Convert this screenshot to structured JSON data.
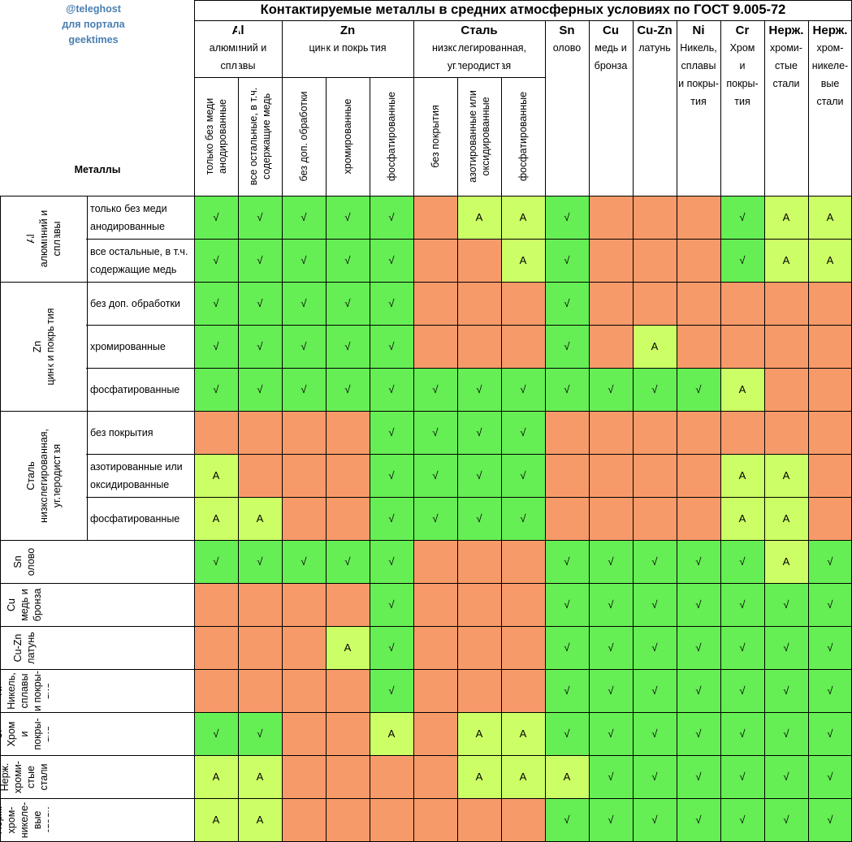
{
  "watermark": [
    "@teleghost",
    "для портала",
    "geektimes"
  ],
  "title": "Контактируемые металлы в средних атмосферных условиях по ГОСТ 9.005-72",
  "corner_label": "Металлы",
  "colors": {
    "compatible": "#66ee55",
    "acceptable": "#ccff66",
    "incompatible": "#f79a6a"
  },
  "symbols": {
    "ok": "√",
    "acceptable": "А"
  },
  "col_groups": [
    {
      "symbol": "Al",
      "name": [
        "алюминий и",
        "сплавы"
      ]
    },
    {
      "symbol": "Zn",
      "name": [
        "цинк и покрытия"
      ]
    },
    {
      "symbol": "Сталь",
      "name": [
        "низколегированная,",
        "углеродистая"
      ]
    },
    {
      "symbol": "Sn",
      "name": [
        "олово"
      ]
    },
    {
      "symbol": "Cu",
      "name": [
        "медь и",
        "бронза"
      ]
    },
    {
      "symbol": "Cu-Zn",
      "name": [
        "латунь"
      ]
    },
    {
      "symbol": "Ni",
      "name": [
        "Никель,",
        "сплавы",
        "и покры-",
        "тия"
      ]
    },
    {
      "symbol": "Cr",
      "name": [
        "Хром",
        "и",
        "покры-",
        "тия"
      ]
    },
    {
      "symbol": "Нерж.",
      "name": [
        "хроми-",
        "стые",
        "стали"
      ]
    },
    {
      "symbol": "Нерж.",
      "name": [
        "хром-",
        "никеле-",
        "вые",
        "стали"
      ]
    }
  ],
  "col_subs": [
    [
      "только без меди",
      "анодированные"
    ],
    [
      "все остальные, в т.ч.",
      "содержащие медь"
    ],
    [
      "без доп. обработки"
    ],
    [
      "хромированные"
    ],
    [
      "фосфатированные"
    ],
    [
      "без покрытия"
    ],
    [
      "азотированные или",
      "оксидированные"
    ],
    [
      "фосфатированные"
    ]
  ],
  "row_groups": [
    {
      "lines": [
        "Al",
        "алюминий и",
        "сплавы"
      ]
    },
    {
      "lines": [
        "Zn",
        "цинк и покрытия"
      ]
    },
    {
      "lines": [
        "Сталь",
        "низколегированная,",
        "углеродистая"
      ]
    },
    {
      "lines": [
        "Sn",
        "олово"
      ]
    },
    {
      "lines": [
        "Cu",
        "медь и",
        "бронза"
      ]
    },
    {
      "lines": [
        "Cu-Zn",
        "латунь"
      ]
    },
    {
      "lines": [
        "Ni",
        "Никель,",
        "сплавы",
        "и покры-",
        "тия"
      ]
    },
    {
      "lines": [
        "Cr",
        "Хром",
        "и",
        "покры-",
        "тия"
      ]
    },
    {
      "lines": [
        "Нерж.",
        "хроми-",
        "стые",
        "стали"
      ]
    },
    {
      "lines": [
        "Нерж.",
        "хром-",
        "никеле-",
        "вые",
        "стали"
      ]
    }
  ],
  "row_subs": [
    [
      "только без меди",
      "анодированные"
    ],
    [
      "все остальные, в т.ч.",
      "содержащие медь"
    ],
    [
      " без доп. обработки"
    ],
    [
      "хромированные"
    ],
    [
      "фосфатированные"
    ],
    [
      "без покрытия"
    ],
    [
      "азотированные или",
      "оксидированные"
    ],
    [
      "фосфатированные"
    ]
  ],
  "matrix": [
    [
      "+",
      "+",
      "+",
      "+",
      "+",
      "-",
      "A",
      "A",
      "+",
      "-",
      "-",
      "-",
      "+",
      "A",
      "A"
    ],
    [
      "+",
      "+",
      "+",
      "+",
      "+",
      "-",
      "-",
      "A",
      "+",
      "-",
      "-",
      "-",
      "+",
      "A",
      "A"
    ],
    [
      "+",
      "+",
      "+",
      "+",
      "+",
      "-",
      "-",
      "-",
      "+",
      "-",
      "-",
      "-",
      "-",
      "-",
      "-"
    ],
    [
      "+",
      "+",
      "+",
      "+",
      "+",
      "-",
      "-",
      "-",
      "+",
      "-",
      "A",
      "-",
      "-",
      "-",
      "-"
    ],
    [
      "+",
      "+",
      "+",
      "+",
      "+",
      "+",
      "+",
      "+",
      "+",
      "+",
      "+",
      "+",
      "A",
      "-",
      "-"
    ],
    [
      "-",
      "-",
      "-",
      "-",
      "+",
      "+",
      "+",
      "+",
      "-",
      "-",
      "-",
      "-",
      "-",
      "-",
      "-"
    ],
    [
      "A",
      "-",
      "-",
      "-",
      "+",
      "+",
      "+",
      "+",
      "-",
      "-",
      "-",
      "-",
      "A",
      "A",
      "-"
    ],
    [
      "A",
      "A",
      "-",
      "-",
      "+",
      "+",
      "+",
      "+",
      "-",
      "-",
      "-",
      "-",
      "A",
      "A",
      "-"
    ],
    [
      "+",
      "+",
      "+",
      "+",
      "+",
      "-",
      "-",
      "-",
      "+",
      "+",
      "+",
      "+",
      "+",
      "A",
      "+"
    ],
    [
      "-",
      "-",
      "-",
      "-",
      "+",
      "-",
      "-",
      "-",
      "+",
      "+",
      "+",
      "+",
      "+",
      "+",
      "+"
    ],
    [
      "-",
      "-",
      "-",
      "A",
      "+",
      "-",
      "-",
      "-",
      "+",
      "+",
      "+",
      "+",
      "+",
      "+",
      "+"
    ],
    [
      "-",
      "-",
      "-",
      "-",
      "+",
      "-",
      "-",
      "-",
      "+",
      "+",
      "+",
      "+",
      "+",
      "+",
      "+"
    ],
    [
      "+",
      "+",
      "-",
      "-",
      "A",
      "-",
      "A",
      "A",
      "+",
      "+",
      "+",
      "+",
      "+",
      "+",
      "+"
    ],
    [
      "A",
      "A",
      "-",
      "-",
      "-",
      "-",
      "A",
      "A",
      "A",
      "+",
      "+",
      "+",
      "+",
      "+",
      "+"
    ],
    [
      "A",
      "A",
      "-",
      "-",
      "-",
      "-",
      "-",
      "-",
      "+",
      "+",
      "+",
      "+",
      "+",
      "+",
      "+"
    ]
  ]
}
